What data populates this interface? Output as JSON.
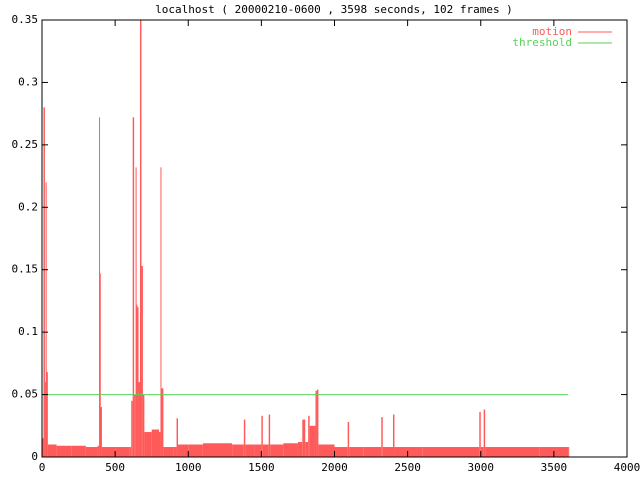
{
  "chart_data": {
    "type": "line",
    "title": "localhost ( 20000210-0600 , 3598 seconds, 102 frames )",
    "xlim": [
      0,
      4000
    ],
    "xticks": [
      0,
      500,
      1000,
      1500,
      2000,
      2500,
      3000,
      3500,
      4000
    ],
    "ylim": [
      0,
      0.35
    ],
    "yticks": [
      0,
      0.05,
      0.1,
      0.15,
      0.2,
      0.25,
      0.3,
      0.35
    ],
    "legend": "top-right",
    "series": [
      {
        "name": "motion",
        "color": "#ff5a5a",
        "style": "impulses",
        "x": [
          0,
          10,
          20,
          25,
          30,
          40,
          100,
          200,
          300,
          380,
          390,
          395,
          400,
          410,
          500,
          600,
          610,
          620,
          630,
          640,
          645,
          650,
          660,
          670,
          680,
          690,
          700,
          750,
          800,
          810,
          815,
          830,
          900,
          920,
          930,
          1000,
          1100,
          1200,
          1300,
          1380,
          1390,
          1450,
          1500,
          1510,
          1550,
          1560,
          1650,
          1750,
          1780,
          1800,
          1820,
          1830,
          1860,
          1870,
          1880,
          1890,
          2000,
          2090,
          2100,
          2200,
          2320,
          2330,
          2400,
          2410,
          2600,
          2800,
          2990,
          3000,
          3020,
          3030,
          3200,
          3400,
          3598
        ],
        "values": [
          0.015,
          0.28,
          0.06,
          0.22,
          0.068,
          0.01,
          0.009,
          0.009,
          0.008,
          0.009,
          0.272,
          0.147,
          0.04,
          0.008,
          0.008,
          0.008,
          0.045,
          0.272,
          0.05,
          0.232,
          0.122,
          0.12,
          0.06,
          0.35,
          0.153,
          0.05,
          0.02,
          0.022,
          0.02,
          0.232,
          0.055,
          0.008,
          0.008,
          0.031,
          0.01,
          0.01,
          0.011,
          0.011,
          0.01,
          0.03,
          0.01,
          0.01,
          0.033,
          0.01,
          0.034,
          0.01,
          0.011,
          0.012,
          0.03,
          0.012,
          0.033,
          0.025,
          0.025,
          0.053,
          0.054,
          0.01,
          0.008,
          0.028,
          0.008,
          0.008,
          0.032,
          0.008,
          0.034,
          0.008,
          0.008,
          0.008,
          0.036,
          0.008,
          0.038,
          0.008,
          0.008,
          0.008,
          0.008
        ]
      },
      {
        "name": "threshold",
        "color": "#5ad25a",
        "style": "lines",
        "x": [
          0,
          3598
        ],
        "values": [
          0.05,
          0.05
        ]
      }
    ]
  }
}
